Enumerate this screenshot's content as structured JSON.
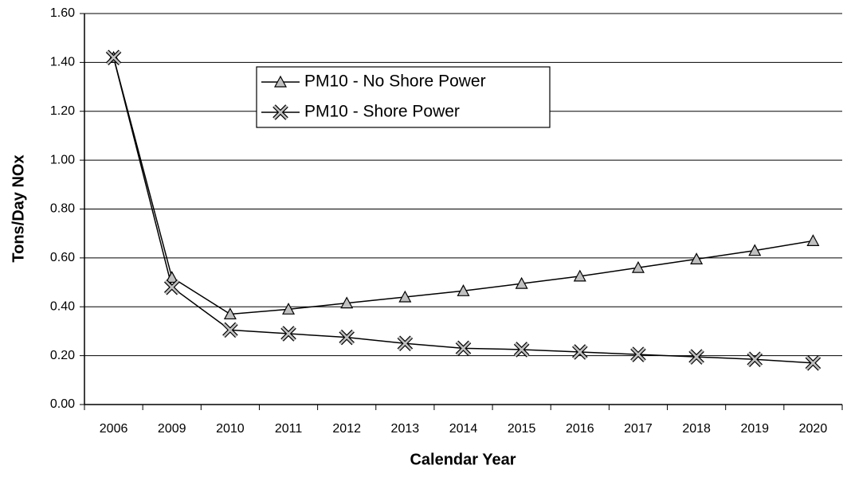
{
  "chart_data": {
    "type": "line",
    "xlabel": "Calendar Year",
    "ylabel": "Tons/Day NOx",
    "categories": [
      "2006",
      "2009",
      "2010",
      "2011",
      "2012",
      "2013",
      "2014",
      "2015",
      "2016",
      "2017",
      "2018",
      "2019",
      "2020"
    ],
    "series": [
      {
        "name": "PM10 - No Shore Power",
        "color": "#000000",
        "marker": "triangle",
        "values": [
          1.42,
          0.52,
          0.37,
          0.39,
          0.415,
          0.44,
          0.465,
          0.495,
          0.525,
          0.56,
          0.595,
          0.63,
          0.67
        ]
      },
      {
        "name": "PM10 - Shore Power",
        "color": "#000000",
        "marker": "x",
        "values": [
          1.42,
          0.48,
          0.305,
          0.29,
          0.275,
          0.25,
          0.23,
          0.225,
          0.215,
          0.205,
          0.195,
          0.185,
          0.17
        ]
      }
    ],
    "ylim": [
      0,
      1.6
    ],
    "yticks": [
      {
        "value": 0,
        "label": "0.00"
      },
      {
        "value": 0.2,
        "label": "0.20"
      },
      {
        "value": 0.4,
        "label": "0.40"
      },
      {
        "value": 0.6,
        "label": "0.60"
      },
      {
        "value": 0.8,
        "label": "0.80"
      },
      {
        "value": 1.0,
        "label": "1.00"
      },
      {
        "value": 1.2,
        "label": "1.20"
      },
      {
        "value": 1.4,
        "label": "1.40"
      },
      {
        "value": 1.6,
        "label": "1.60"
      }
    ],
    "grid": true
  }
}
